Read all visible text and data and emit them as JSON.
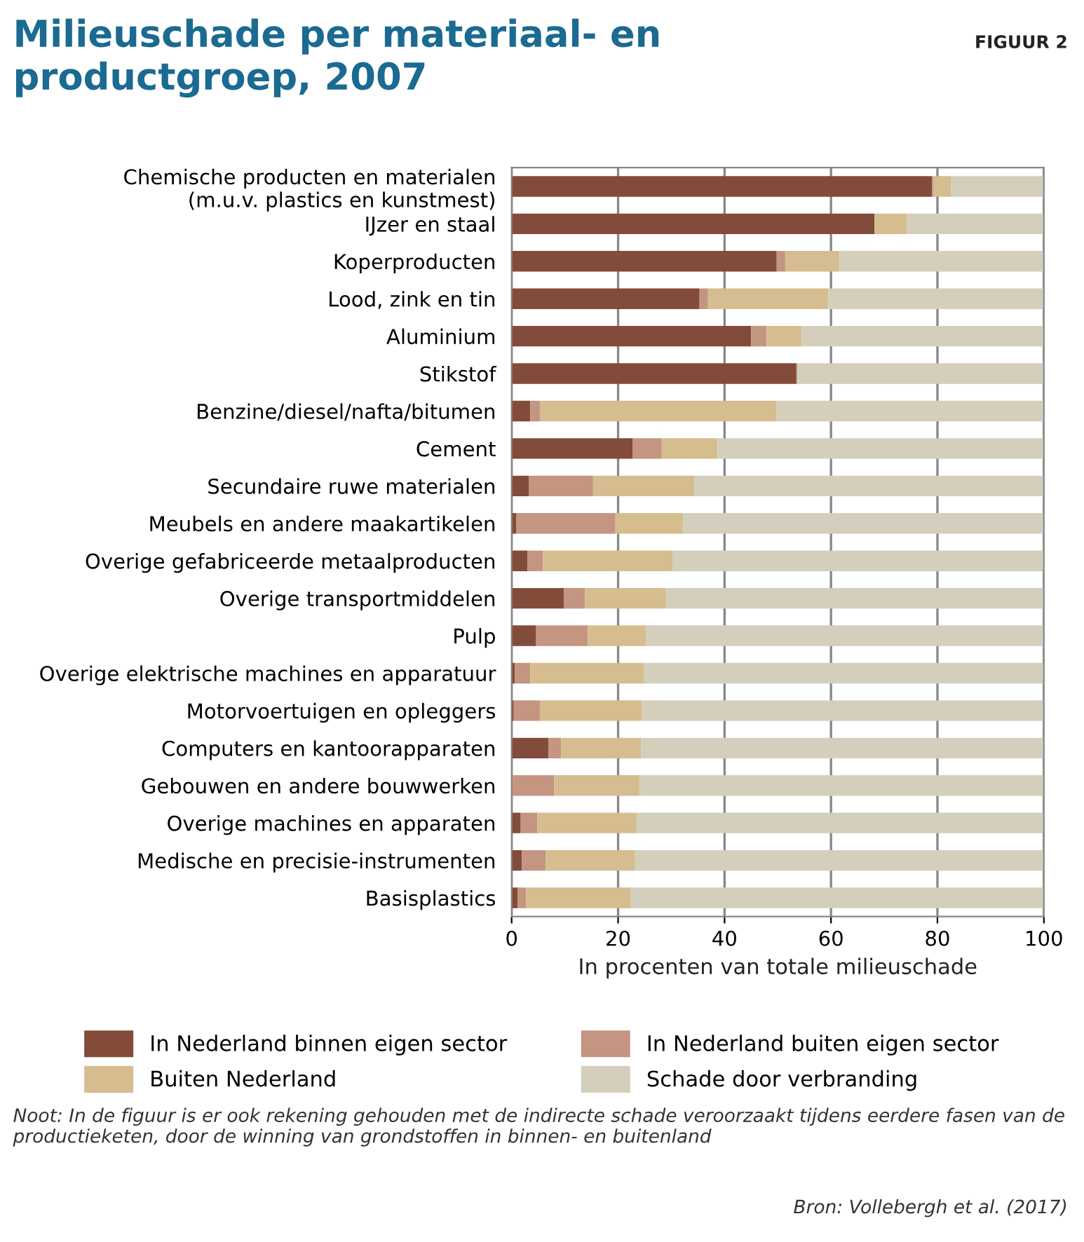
{
  "chart_data": {
    "type": "bar",
    "orientation": "horizontal",
    "stacked": true,
    "title": "Milieuschade per materiaal- en\nproductgroep, 2007",
    "xlabel": "In procenten van totale milieuschade",
    "categories": [
      "Chemische producten en materialen\n(m.u.v. plastics en kunstmest)",
      "IJzer en staal",
      "Koperproducten",
      "Lood, zink en tin",
      "Aluminium",
      "Stikstof",
      "Benzine/diesel/nafta/bitumen",
      "Cement",
      "Secundaire ruwe materialen",
      "Meubels en andere maakartikelen",
      "Overige gefabriceerde metaalproducten",
      "Overige transportmiddelen",
      "Pulp",
      "Overige elektrische machines en apparatuur",
      "Motorvoertuigen en opleggers",
      "Computers en kantoorapparaten",
      "Gebouwen en andere bouwwerken",
      "Overige machines en apparaten",
      "Medische en precisie-instrumenten",
      "Basisplastics"
    ],
    "series": [
      {
        "name": "In Nederland binnen eigen sector",
        "color": "#834b39",
        "values": [
          79.0,
          68.2,
          49.8,
          35.3,
          45.0,
          53.5,
          3.5,
          22.7,
          3.2,
          0.9,
          3.0,
          9.8,
          4.6,
          0.6,
          0.4,
          6.9,
          0,
          1.7,
          1.9,
          1.1
        ]
      },
      {
        "name": "In Nederland buiten eigen sector",
        "color": "#c49581",
        "values": [
          0.3,
          0,
          1.6,
          1.6,
          2.9,
          0.2,
          1.8,
          5.5,
          12.1,
          18.6,
          2.9,
          4.0,
          9.7,
          2.9,
          4.9,
          2.4,
          8.0,
          3.1,
          4.5,
          1.6
        ]
      },
      {
        "name": "Buiten Nederland",
        "color": "#d5bd8f",
        "values": [
          3.3,
          6.0,
          10.2,
          22.6,
          6.6,
          0,
          44.5,
          10.5,
          19.0,
          12.7,
          24.4,
          15.2,
          11.0,
          21.3,
          19.2,
          15.0,
          16.0,
          18.7,
          16.8,
          19.7
        ]
      },
      {
        "name": "Schade door verbranding",
        "color": "#d3cfbc",
        "values": [
          17.4,
          25.8,
          38.4,
          40.5,
          45.5,
          46.3,
          50.2,
          61.3,
          65.7,
          67.8,
          69.7,
          71.0,
          74.7,
          75.2,
          75.5,
          75.7,
          76.0,
          76.5,
          76.8,
          77.6
        ]
      }
    ],
    "xlim": [
      0,
      100
    ],
    "xticks": [
      0,
      20,
      40,
      60,
      80,
      100
    ],
    "grid": "x",
    "legend": "bottom",
    "annotations": [
      "FIGUUR 2",
      "Noot: In de figuur is er ook rekening gehouden met de indirecte schade veroorzaakt tijdens eerdere fasen van de productieketen, door de winning van grondstoffen in binnen- en buitenland",
      "Bron: Vollebergh et al. (2017)"
    ]
  }
}
